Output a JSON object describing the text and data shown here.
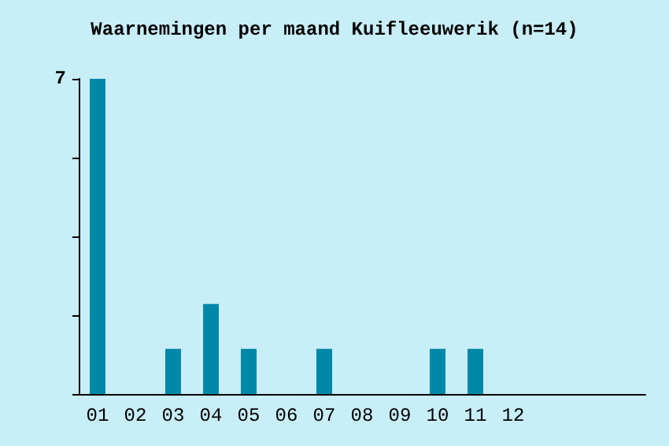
{
  "chart_data": {
    "type": "bar",
    "title": "Waarnemingen per maand Kuifleeuwerik (n=14)",
    "categories": [
      "01",
      "02",
      "03",
      "04",
      "05",
      "06",
      "07",
      "08",
      "09",
      "10",
      "11",
      "12",
      null,
      null,
      null
    ],
    "values": [
      7,
      0,
      1,
      2,
      1,
      0,
      1,
      0,
      0,
      1,
      1,
      0,
      null,
      null,
      null
    ],
    "color": "#0088a8",
    "ylim": [
      0,
      7
    ],
    "yticks": [
      {
        "value": 0,
        "label": null
      },
      {
        "value": 1.75,
        "label": null
      },
      {
        "value": 3.5,
        "label": null
      },
      {
        "value": 5.25,
        "label": null
      },
      7
    ],
    "grid": false
  }
}
